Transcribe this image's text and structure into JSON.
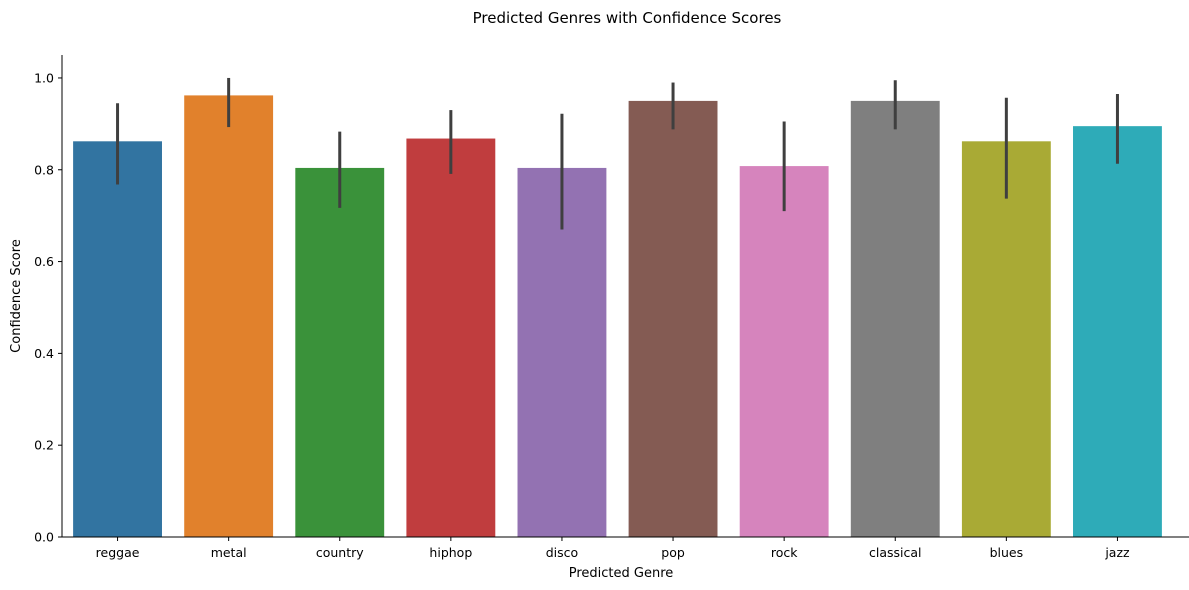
{
  "chart_data": {
    "type": "bar",
    "title": "Predicted Genres with Confidence Scores",
    "xlabel": "Predicted Genre",
    "ylabel": "Confidence Score",
    "ylim": [
      0,
      1.05
    ],
    "yticks": [
      "0.0",
      "0.2",
      "0.4",
      "0.6",
      "0.8",
      "1.0"
    ],
    "ytick_values": [
      0,
      0.2,
      0.4,
      0.6,
      0.8,
      1.0
    ],
    "grid": false,
    "legend": "none",
    "categories": [
      "reggae",
      "metal",
      "country",
      "hiphop",
      "disco",
      "pop",
      "rock",
      "classical",
      "blues",
      "jazz"
    ],
    "values": [
      0.862,
      0.962,
      0.804,
      0.868,
      0.804,
      0.95,
      0.808,
      0.95,
      0.862,
      0.895
    ],
    "error_low": [
      0.768,
      0.893,
      0.717,
      0.791,
      0.67,
      0.888,
      0.71,
      0.888,
      0.737,
      0.813
    ],
    "error_high": [
      0.945,
      1.0,
      0.883,
      0.93,
      0.922,
      0.99,
      0.905,
      0.995,
      0.957,
      0.965
    ],
    "colors": [
      "#3274a1",
      "#e1812c",
      "#3a923a",
      "#c03d3e",
      "#9372b2",
      "#845b53",
      "#d684bd",
      "#7f7f7f",
      "#a9aa35",
      "#2eabb8"
    ],
    "error_color": "#3f3f3f"
  }
}
